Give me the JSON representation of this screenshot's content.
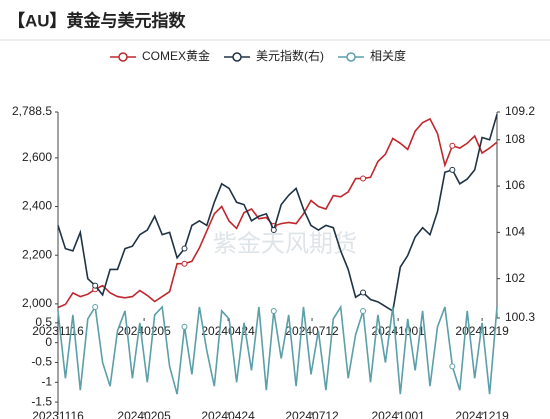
{
  "title": "【AU】黄金与美元指数",
  "watermark": "紫金天风期货",
  "chart_data": [
    {
      "type": "line",
      "x": [
        "20231116",
        "20231123",
        "20231130",
        "20231207",
        "20231214",
        "20231221",
        "20231228",
        "20240104",
        "20240111",
        "20240118",
        "20240125",
        "20240201",
        "20240208",
        "20240215",
        "20240222",
        "20240229",
        "20240307",
        "20240314",
        "20240321",
        "20240328",
        "20240404",
        "20240411",
        "20240418",
        "20240425",
        "20240502",
        "20240509",
        "20240516",
        "20240523",
        "20240530",
        "20240606",
        "20240613",
        "20240620",
        "20240627",
        "20240704",
        "20240711",
        "20240718",
        "20240725",
        "20240801",
        "20240808",
        "20240815",
        "20240822",
        "20240829",
        "20240905",
        "20240912",
        "20240919",
        "20240926",
        "20241003",
        "20241010",
        "20241017",
        "20241024",
        "20241031",
        "20241107",
        "20241114",
        "20241121",
        "20241128",
        "20241205",
        "20241212",
        "20241219",
        "20241226",
        "20250102"
      ],
      "xlim": [
        "20231116",
        "20250102"
      ],
      "xticks": [
        "20231116",
        "20240205",
        "20240424",
        "20240712",
        "20241001",
        "20241219"
      ],
      "ylim": [
        1942,
        2788.5
      ],
      "yticks": [
        {
          "value": 2000,
          "label": "2,000"
        },
        {
          "value": 2200,
          "label": "2,200"
        },
        {
          "value": 2400,
          "label": "2,400"
        },
        {
          "value": 2600,
          "label": "2,600"
        },
        {
          "value": 2788.5,
          "label": "2,788.5"
        }
      ],
      "y2lim": [
        100.3,
        109.2
      ],
      "y2ticks": [
        100.3,
        102,
        104,
        106,
        108,
        109.2
      ],
      "series": [
        {
          "name": "COMEX黄金",
          "color": "#c0282d",
          "values": [
            1985,
            1998,
            2045,
            2030,
            2040,
            2060,
            2075,
            2045,
            2030,
            2025,
            2030,
            2055,
            2035,
            2010,
            2030,
            2050,
            2165,
            2165,
            2175,
            2230,
            2300,
            2370,
            2400,
            2340,
            2310,
            2375,
            2390,
            2350,
            2355,
            2320,
            2330,
            2335,
            2330,
            2370,
            2425,
            2400,
            2390,
            2445,
            2440,
            2460,
            2515,
            2515,
            2520,
            2585,
            2615,
            2680,
            2660,
            2635,
            2710,
            2745,
            2760,
            2700,
            2570,
            2650,
            2640,
            2660,
            2690,
            2620,
            2640,
            2665
          ]
        },
        {
          "name": "美元指数(右)",
          "color": "#1f3344",
          "axis": "y2",
          "values": [
            104.3,
            103.3,
            103.2,
            104.0,
            102.0,
            101.7,
            101.3,
            102.4,
            102.4,
            103.3,
            103.4,
            103.9,
            104.1,
            104.7,
            103.9,
            104.0,
            102.9,
            103.3,
            104.3,
            104.5,
            104.3,
            105.3,
            106.1,
            105.9,
            105.3,
            105.2,
            104.5,
            104.7,
            104.8,
            104.1,
            105.2,
            105.6,
            105.9,
            105.0,
            104.3,
            104.1,
            104.3,
            104.2,
            103.2,
            102.4,
            101.2,
            101.4,
            101.1,
            101.0,
            100.8,
            100.6,
            102.5,
            103.0,
            103.8,
            104.2,
            103.9,
            104.9,
            106.6,
            106.7,
            106.1,
            106.3,
            106.7,
            108.1,
            108.0,
            109.1
          ]
        }
      ]
    },
    {
      "type": "line",
      "x": [
        "20231116",
        "20231123",
        "20231130",
        "20231207",
        "20231214",
        "20231221",
        "20231228",
        "20240104",
        "20240111",
        "20240118",
        "20240125",
        "20240201",
        "20240208",
        "20240215",
        "20240222",
        "20240229",
        "20240307",
        "20240314",
        "20240321",
        "20240328",
        "20240404",
        "20240411",
        "20240418",
        "20240425",
        "20240502",
        "20240509",
        "20240516",
        "20240523",
        "20240530",
        "20240606",
        "20240613",
        "20240620",
        "20240627",
        "20240704",
        "20240711",
        "20240718",
        "20240725",
        "20240801",
        "20240808",
        "20240815",
        "20240822",
        "20240829",
        "20240905",
        "20240912",
        "20240919",
        "20240926",
        "20241003",
        "20241010",
        "20241017",
        "20241024",
        "20241031",
        "20241107",
        "20241114",
        "20241121",
        "20241128",
        "20241205",
        "20241212",
        "20241219",
        "20241226",
        "20250102"
      ],
      "xlim": [
        "20231116",
        "20250102"
      ],
      "xticks": [
        "20231116",
        "20240205",
        "20240424",
        "20240712",
        "20241001",
        "20241219"
      ],
      "ylim": [
        -1.75,
        0.95
      ],
      "yticks": [
        0.5,
        0,
        -0.5,
        -1,
        -1.5
      ],
      "series": [
        {
          "name": "相关度",
          "color": "#5b9fa8",
          "values": [
            0.8,
            -0.9,
            0.7,
            -1.2,
            0.6,
            0.9,
            -0.5,
            -1.1,
            0.3,
            0.8,
            -0.9,
            0.5,
            -1.0,
            0.7,
            0.9,
            -0.6,
            -1.3,
            0.4,
            -0.8,
            0.9,
            -0.2,
            -1.1,
            0.8,
            0.6,
            -1.0,
            0.5,
            -0.7,
            0.9,
            -1.2,
            0.8,
            -0.4,
            0.7,
            -1.1,
            0.9,
            -0.8,
            0.3,
            -1.2,
            0.6,
            0.9,
            -0.9,
            0.2,
            0.8,
            -1.0,
            0.7,
            -0.5,
            0.9,
            -1.3,
            0.6,
            -0.7,
            0.8,
            -1.1,
            0.4,
            0.9,
            -0.6,
            -1.2,
            0.8,
            -0.9,
            0.5,
            -1.3,
            0.9
          ]
        }
      ]
    }
  ]
}
